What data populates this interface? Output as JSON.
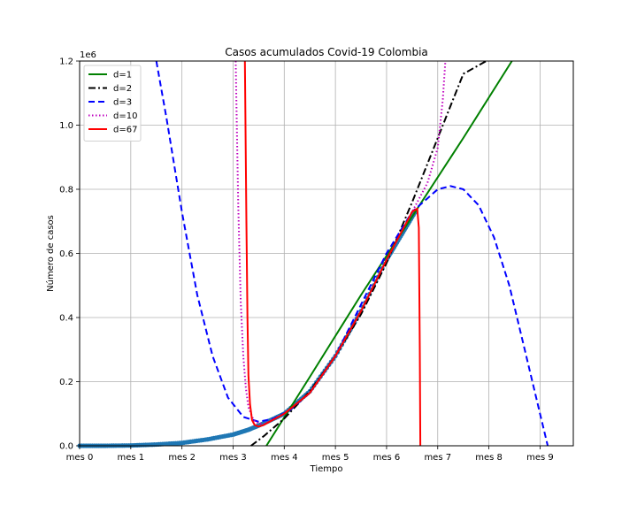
{
  "chart_data": {
    "type": "line",
    "title": "Casos acumulados Covid-19 Colombia",
    "xlabel": "Tiempo",
    "ylabel": "Número de casos",
    "y_offset_text": "1e6",
    "xlim": [
      0,
      9.65
    ],
    "ylim": [
      0,
      1.2
    ],
    "y_scale_factor": 1000000,
    "x_ticks": [
      {
        "value": 0,
        "label": "mes 0"
      },
      {
        "value": 1,
        "label": "mes 1"
      },
      {
        "value": 2,
        "label": "mes 2"
      },
      {
        "value": 3,
        "label": "mes 3"
      },
      {
        "value": 4,
        "label": "mes 4"
      },
      {
        "value": 5,
        "label": "mes 5"
      },
      {
        "value": 6,
        "label": "mes 6"
      },
      {
        "value": 7,
        "label": "mes 7"
      },
      {
        "value": 8,
        "label": "mes 8"
      },
      {
        "value": 9,
        "label": "mes 9"
      }
    ],
    "y_ticks": [
      {
        "value": 0,
        "label": "0.0"
      },
      {
        "value": 0.2,
        "label": "0.2"
      },
      {
        "value": 0.4,
        "label": "0.4"
      },
      {
        "value": 0.6,
        "label": "0.6"
      },
      {
        "value": 0.8,
        "label": "0.8"
      },
      {
        "value": 1.0,
        "label": "1.0"
      },
      {
        "value": 1.2,
        "label": "1.2"
      }
    ],
    "grid": true,
    "legend_position": "top-left",
    "observed": {
      "color": "#1f77b4",
      "x": [
        0,
        0.5,
        1.0,
        1.5,
        2.0,
        2.5,
        3.0,
        3.3,
        3.6,
        4.0,
        4.5,
        5.0,
        5.5,
        6.0,
        6.3,
        6.6
      ],
      "y": [
        0,
        0,
        0.001,
        0.004,
        0.009,
        0.02,
        0.035,
        0.05,
        0.07,
        0.1,
        0.17,
        0.28,
        0.42,
        0.58,
        0.66,
        0.74
      ]
    },
    "series": [
      {
        "name": "d=1",
        "color": "#008000",
        "style": "solid",
        "x": [
          3.65,
          4.5,
          5.5,
          6.5,
          7.5,
          8.45
        ],
        "y": [
          0,
          0.215,
          0.47,
          0.715,
          0.96,
          1.2
        ]
      },
      {
        "name": "d=2",
        "color": "#000000",
        "style": "dashdot",
        "x": [
          3.35,
          3.6,
          4.0,
          4.5,
          5.0,
          5.5,
          6.0,
          6.5,
          7.0,
          7.5,
          7.95
        ],
        "y": [
          0,
          0.03,
          0.085,
          0.17,
          0.28,
          0.41,
          0.57,
          0.76,
          0.96,
          1.16,
          1.2
        ]
      },
      {
        "name": "d=3",
        "color": "#0000ff",
        "style": "dashed",
        "x": [
          1.5,
          1.7,
          2.0,
          2.3,
          2.6,
          2.9,
          3.2,
          3.5,
          3.8,
          4.1,
          4.5,
          5.0,
          5.5,
          6.0,
          6.5,
          7.0,
          7.25,
          7.5,
          7.8,
          8.1,
          8.4,
          8.7,
          9.0,
          9.15
        ],
        "y": [
          1.2,
          1.02,
          0.73,
          0.47,
          0.28,
          0.15,
          0.09,
          0.075,
          0.085,
          0.11,
          0.165,
          0.28,
          0.44,
          0.6,
          0.73,
          0.8,
          0.81,
          0.8,
          0.75,
          0.65,
          0.5,
          0.3,
          0.1,
          0
        ]
      },
      {
        "name": "d=10",
        "color": "#bf00bf",
        "style": "dotted",
        "x": [
          3.05,
          3.1,
          3.15,
          3.2,
          3.25,
          3.3,
          3.4,
          3.5,
          3.6,
          4.0,
          4.5,
          5.0,
          5.5,
          6.0,
          6.5,
          6.8,
          7.0,
          7.1,
          7.15
        ],
        "y": [
          1.2,
          0.75,
          0.45,
          0.28,
          0.18,
          0.12,
          0.08,
          0.07,
          0.068,
          0.1,
          0.165,
          0.28,
          0.42,
          0.58,
          0.73,
          0.82,
          0.93,
          1.08,
          1.2
        ]
      },
      {
        "name": "d=67",
        "color": "#ff0000",
        "style": "solid",
        "x": [
          3.23,
          3.26,
          3.28,
          3.3,
          3.33,
          3.37,
          3.42,
          3.5,
          3.6,
          4.0,
          4.5,
          5.0,
          5.5,
          6.0,
          6.5,
          6.6,
          6.63,
          6.65,
          6.66
        ],
        "y": [
          1.2,
          0.7,
          0.4,
          0.22,
          0.13,
          0.08,
          0.065,
          0.06,
          0.065,
          0.1,
          0.165,
          0.28,
          0.42,
          0.58,
          0.73,
          0.74,
          0.68,
          0.3,
          0
        ]
      }
    ]
  }
}
